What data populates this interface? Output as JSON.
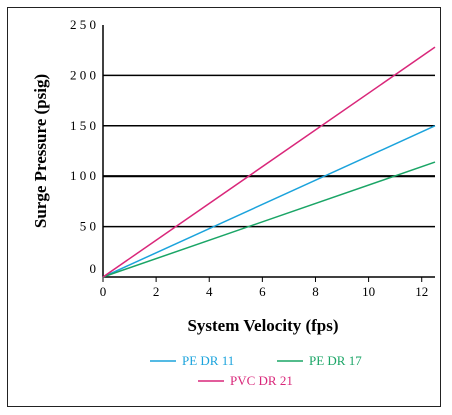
{
  "chart_data": {
    "type": "line",
    "xlabel": "System Velocity (fps)",
    "ylabel": "Surge Pressure (psig)",
    "xlim": [
      0,
      12.5
    ],
    "ylim": [
      0,
      250
    ],
    "x_ticks": [
      "0",
      "2",
      "4",
      "6",
      "8",
      "10",
      "12"
    ],
    "y_ticks": [
      "0",
      "50",
      "100",
      "150",
      "200",
      "250"
    ],
    "y_tick_labels": [
      "0",
      "5 0",
      "1 0 0",
      "1 5 0",
      "2 0 0",
      "2 5 0"
    ],
    "gridlines_y": [
      50,
      100,
      150,
      200
    ],
    "legend_position": "bottom",
    "series": [
      {
        "name": "PE DR 11",
        "color": "#1ba3dc",
        "x": [
          0,
          12.5
        ],
        "y": [
          0,
          150
        ]
      },
      {
        "name": "PE DR 17",
        "color": "#1aa566",
        "x": [
          0,
          12.5
        ],
        "y": [
          0,
          114
        ]
      },
      {
        "name": "PVC DR 21",
        "color": "#d9277a",
        "x": [
          0,
          12.5
        ],
        "y": [
          0,
          228
        ]
      }
    ]
  }
}
